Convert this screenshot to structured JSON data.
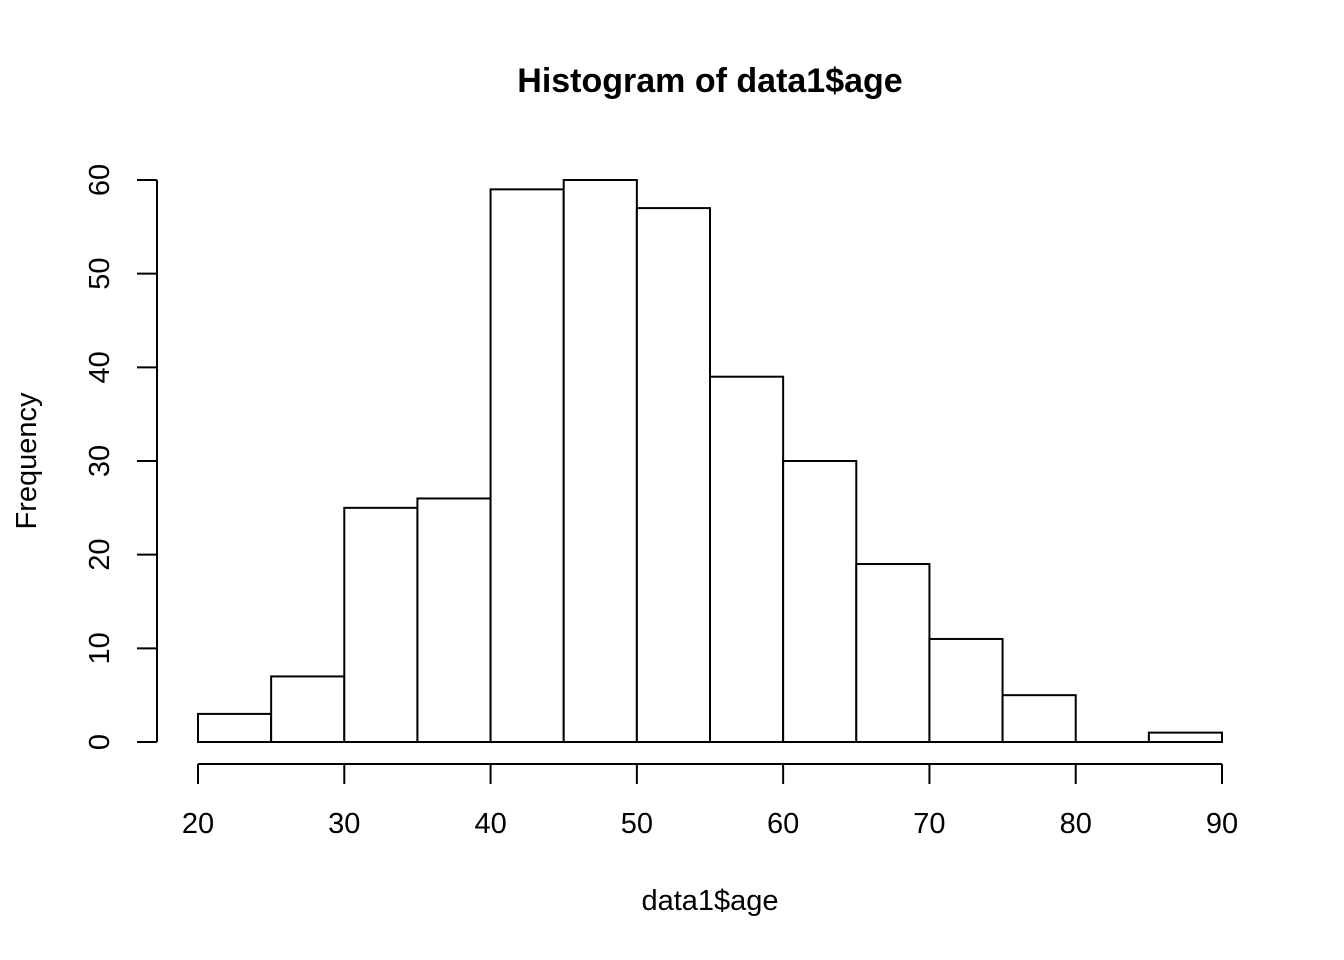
{
  "chart_data": {
    "type": "bar",
    "title": "Histogram of data1$age",
    "xlabel": "data1$age",
    "ylabel": "Frequency",
    "bins": [
      {
        "from": 20,
        "to": 25,
        "count": 3
      },
      {
        "from": 25,
        "to": 30,
        "count": 7
      },
      {
        "from": 30,
        "to": 35,
        "count": 25
      },
      {
        "from": 35,
        "to": 40,
        "count": 26
      },
      {
        "from": 40,
        "to": 45,
        "count": 59
      },
      {
        "from": 45,
        "to": 50,
        "count": 60
      },
      {
        "from": 50,
        "to": 55,
        "count": 57
      },
      {
        "from": 55,
        "to": 60,
        "count": 39
      },
      {
        "from": 60,
        "to": 65,
        "count": 30
      },
      {
        "from": 65,
        "to": 70,
        "count": 19
      },
      {
        "from": 70,
        "to": 75,
        "count": 11
      },
      {
        "from": 75,
        "to": 80,
        "count": 5
      },
      {
        "from": 80,
        "to": 85,
        "count": 0
      },
      {
        "from": 85,
        "to": 90,
        "count": 1
      }
    ],
    "xticks": [
      20,
      30,
      40,
      50,
      60,
      70,
      80,
      90
    ],
    "yticks": [
      0,
      10,
      20,
      30,
      40,
      50,
      60
    ],
    "xlim": [
      20,
      90
    ],
    "ylim": [
      0,
      60
    ],
    "grid": false,
    "bar_fill": "#ffffff",
    "stroke_color": "#000000"
  }
}
